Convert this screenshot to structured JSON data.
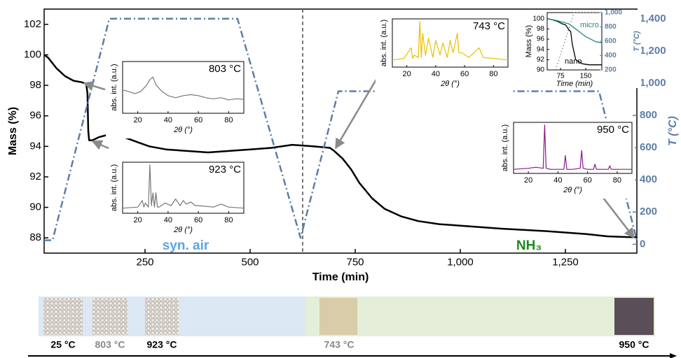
{
  "chart_data": [
    {
      "type": "line",
      "xlabel": "Time (min)",
      "ylabel": "Mass (%)",
      "y2label": "T (°C)",
      "xlim": [
        10,
        1420
      ],
      "ylim": [
        87,
        103
      ],
      "y2lim": [
        -55,
        1460
      ],
      "xticks": [
        250,
        500,
        750,
        {
          "value": 1000,
          "label": "1,000"
        },
        {
          "value": 1250,
          "label": "1,250"
        }
      ],
      "yticks": [
        88,
        90,
        92,
        94,
        96,
        98,
        100,
        102
      ],
      "y2ticks": [
        0,
        200,
        400,
        600,
        800,
        {
          "value": 1000,
          "label": "1,000"
        },
        {
          "value": 1200,
          "label": "1,200"
        },
        {
          "value": 1400,
          "label": "1,400"
        }
      ],
      "vline": 625,
      "series": [
        {
          "color": "#000000",
          "x": [
            10,
            20,
            40,
            60,
            80,
            100,
            110,
            113,
            115,
            117,
            125,
            140,
            160,
            180,
            200,
            230,
            260,
            300,
            350,
            400,
            450,
            500,
            550,
            600,
            650,
            690,
            700,
            720,
            740,
            760,
            790,
            820,
            860,
            900,
            950,
            1000,
            1100,
            1200,
            1300,
            1350,
            1400,
            1420
          ],
          "values": [
            100,
            99.8,
            99.1,
            98.6,
            98.3,
            98.2,
            98.1,
            97.5,
            95,
            94.4,
            94.4,
            94.6,
            94.75,
            94.7,
            94.6,
            94.3,
            94.0,
            93.8,
            93.7,
            93.6,
            93.7,
            93.8,
            93.9,
            94.1,
            94.0,
            93.9,
            93.7,
            93.2,
            92.5,
            91.6,
            90.6,
            89.9,
            89.4,
            89.1,
            88.9,
            88.8,
            88.6,
            88.45,
            88.25,
            88.1,
            88.05,
            88.05
          ]
        },
        {
          "color": "#5b7fa6",
          "axis": "y2",
          "x": [
            10,
            30,
            165,
            470,
            620,
            710,
            1330,
            1420
          ],
          "values": [
            25,
            25,
            1400,
            1400,
            40,
            950,
            950,
            25
          ]
        }
      ],
      "annotations": [
        {
          "text": "syn. air",
          "color": "#5aa6e6"
        },
        {
          "text": "NH₃",
          "color": "#1e8a1e"
        }
      ]
    },
    {
      "type": "line",
      "title": "803 °C",
      "ylabel": "abs. int. (a.u.)",
      "xlabel": "2θ (°)",
      "xlim": [
        10,
        90
      ],
      "ylim": [
        0,
        100
      ],
      "xticks": [
        20,
        40,
        60,
        80
      ],
      "series": [
        {
          "color": "#777777",
          "x": [
            10,
            14,
            18,
            22,
            26,
            28,
            30,
            32,
            36,
            40,
            45,
            50,
            55,
            60,
            65,
            70,
            75,
            80,
            85,
            90
          ],
          "values": [
            45,
            42,
            38,
            42,
            55,
            65,
            70,
            55,
            42,
            34,
            30,
            34,
            36,
            34,
            30,
            28,
            30,
            26,
            28,
            27
          ]
        }
      ]
    },
    {
      "type": "line",
      "title": "923 °C",
      "ylabel": "abs. int. (a.u.)",
      "xlabel": "2θ (°)",
      "xlim": [
        10,
        90
      ],
      "ylim": [
        0,
        100
      ],
      "xticks": [
        20,
        40,
        60,
        80
      ],
      "series": [
        {
          "color": "#777777",
          "x": [
            10,
            20,
            23,
            24,
            25,
            27,
            28,
            29,
            30,
            31,
            32,
            33,
            34,
            38,
            42,
            45,
            48,
            50,
            52,
            55,
            58,
            60,
            70,
            75,
            80,
            90
          ],
          "values": [
            10,
            12,
            25,
            12,
            20,
            12,
            95,
            15,
            40,
            12,
            40,
            12,
            12,
            20,
            15,
            28,
            15,
            25,
            18,
            22,
            15,
            15,
            12,
            18,
            12,
            10
          ]
        }
      ]
    },
    {
      "type": "line",
      "title": "743 °C",
      "ylabel": "abs. int. (a.u.)",
      "xlabel": "2θ (°)",
      "xlim": [
        10,
        90
      ],
      "ylim": [
        0,
        100
      ],
      "xticks": [
        20,
        40,
        60,
        80
      ],
      "series": [
        {
          "color": "#e8c000",
          "x": [
            10,
            18,
            23,
            24,
            25,
            28,
            29,
            30,
            31,
            33,
            35,
            38,
            40,
            43,
            45,
            48,
            50,
            52,
            55,
            56,
            58,
            63,
            70,
            73,
            80,
            90
          ],
          "values": [
            15,
            18,
            40,
            18,
            25,
            20,
            95,
            20,
            70,
            25,
            60,
            20,
            55,
            25,
            50,
            20,
            55,
            30,
            70,
            30,
            30,
            20,
            40,
            20,
            18,
            15
          ]
        }
      ]
    },
    {
      "type": "line",
      "title": "950 °C",
      "ylabel": "abs. int. (a.u.)",
      "xlabel": "2θ (°)",
      "xlim": [
        10,
        90
      ],
      "ylim": [
        0,
        100
      ],
      "xticks": [
        20,
        40,
        60,
        80
      ],
      "series": [
        {
          "color": "#8a1a8a",
          "x": [
            10,
            20,
            25,
            30,
            31,
            32,
            35,
            40,
            44,
            45,
            46,
            50,
            55,
            56,
            57,
            60,
            64,
            65,
            66,
            70,
            74,
            75,
            76,
            80,
            85,
            90
          ],
          "values": [
            8,
            10,
            12,
            10,
            95,
            10,
            8,
            8,
            8,
            35,
            8,
            8,
            10,
            45,
            10,
            8,
            8,
            18,
            8,
            8,
            8,
            15,
            8,
            8,
            8,
            8
          ]
        }
      ]
    },
    {
      "type": "line",
      "xlabel": "Time (min)",
      "ylabel": "Mass (%)",
      "y2label": "T (°C)",
      "xlim": [
        35,
        198
      ],
      "ylim": [
        90,
        101.2
      ],
      "y2lim": [
        200,
        1000
      ],
      "xticks": [
        75,
        150
      ],
      "yticks": [
        90,
        92,
        94,
        96,
        98,
        100
      ],
      "y2ticks": [
        200,
        400,
        600,
        800,
        {
          "value": 1000,
          "label": "1,000"
        }
      ],
      "series": [
        {
          "name": "nano",
          "color": "#000000",
          "x": [
            35,
            50,
            65,
            80,
            90,
            95,
            100,
            105,
            110,
            120,
            140,
            160,
            198
          ],
          "values": [
            100,
            99.8,
            99.5,
            99,
            98.8,
            98.3,
            97.8,
            97.5,
            95,
            92,
            91.2,
            91,
            91
          ]
        },
        {
          "name": "micro",
          "color": "#1a8a80",
          "x": [
            35,
            60,
            100,
            110,
            130,
            150,
            180,
            198
          ],
          "values": [
            100,
            99.7,
            99,
            98.5,
            97.5,
            96.5,
            95.5,
            95.3
          ]
        },
        {
          "color": "#888888",
          "axis": "y2",
          "dotted": true,
          "x": [
            60,
            115,
            198
          ],
          "values": [
            200,
            1000,
            1000
          ]
        }
      ]
    }
  ],
  "timeline": {
    "labels": [
      "25 °C",
      "803 °C",
      "923 °C",
      "743 °C",
      "950 °C"
    ]
  }
}
